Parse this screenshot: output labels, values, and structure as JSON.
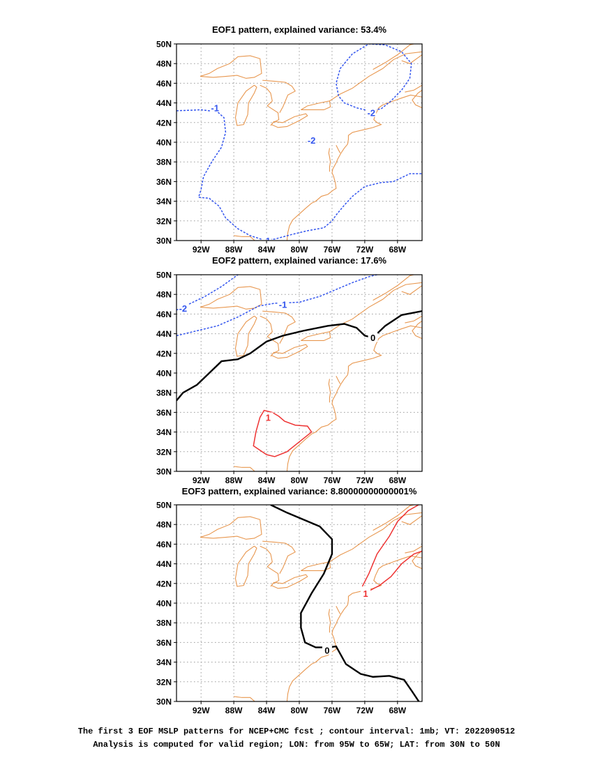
{
  "panels": [
    {
      "title": "EOF1 pattern, explained variance: 53.4%",
      "contours": [
        {
          "value": "-1",
          "color": "#3355ee",
          "style": "dashed",
          "points": [
            [
              -95,
              43.2
            ],
            [
              -92,
              43.3
            ],
            [
              -90,
              43.1
            ],
            [
              -89.2,
              42.5
            ],
            [
              -89.0,
              41.0
            ],
            [
              -89.5,
              39.5
            ],
            [
              -90.7,
              38.0
            ],
            [
              -91.7,
              36.5
            ],
            [
              -92.0,
              35.2
            ],
            [
              -92.3,
              34.4
            ],
            [
              -91.0,
              34.3
            ],
            [
              -89.8,
              33.5
            ],
            [
              -89.0,
              32.3
            ],
            [
              -87.5,
              31.2
            ],
            [
              -86.0,
              30.5
            ],
            [
              -84.5,
              30.1
            ],
            [
              -83.0,
              30.15
            ],
            [
              -81.0,
              30.6
            ],
            [
              -79.0,
              31.0
            ],
            [
              -77.0,
              31.3
            ],
            [
              -76.0,
              32.0
            ],
            [
              -75.5,
              32.6
            ],
            [
              -74.5,
              33.6
            ],
            [
              -73.5,
              34.5
            ],
            [
              -72.0,
              35.5
            ],
            [
              -70.0,
              35.9
            ],
            [
              -68.5,
              36.0
            ],
            [
              -67.5,
              36.4
            ],
            [
              -66.5,
              36.8
            ],
            [
              -65,
              36.8
            ]
          ],
          "labels": [
            [
              -90.3,
              43.5
            ],
            [
              -84.0,
              30.0
            ]
          ]
        },
        {
          "value": "-2",
          "color": "#3355ee",
          "style": "dashed",
          "points": [
            [
              -71.5,
              43.2
            ],
            [
              -73.0,
              43.5
            ],
            [
              -74.5,
              44.0
            ],
            [
              -75.2,
              44.7
            ],
            [
              -75.5,
              46.0
            ],
            [
              -75.0,
              47.5
            ],
            [
              -73.5,
              49.0
            ],
            [
              -71.5,
              50.0
            ],
            [
              -69.5,
              49.9
            ],
            [
              -67.5,
              49.2
            ],
            [
              -66.3,
              48.0
            ],
            [
              -66.5,
              46.5
            ],
            [
              -67.5,
              45.3
            ],
            [
              -68.8,
              44.2
            ],
            [
              -70.0,
              43.4
            ],
            [
              -71.5,
              43.2
            ]
          ],
          "labels": [
            [
              -71.2,
              43.0
            ],
            [
              -78.5,
              40.2
            ]
          ]
        }
      ]
    },
    {
      "title": "EOF2 pattern, explained variance: 17.6%",
      "contours": [
        {
          "value": "-2",
          "color": "#3355ee",
          "style": "dashed",
          "points": [
            [
              -95,
              46.4
            ],
            [
              -93.5,
              47.0
            ],
            [
              -91.5,
              47.8
            ],
            [
              -89.5,
              48.8
            ],
            [
              -87.5,
              50.0
            ]
          ],
          "labels": [
            [
              -94.2,
              46.6
            ]
          ]
        },
        {
          "value": "-1",
          "color": "#3355ee",
          "style": "dashed",
          "points": [
            [
              -95,
              43.8
            ],
            [
              -92.5,
              44.3
            ],
            [
              -90.0,
              44.8
            ],
            [
              -87.5,
              45.7
            ],
            [
              -85.0,
              46.8
            ],
            [
              -83.0,
              47.1
            ],
            [
              -80.0,
              47.2
            ],
            [
              -77.5,
              47.8
            ],
            [
              -75.5,
              48.5
            ],
            [
              -73.5,
              49.2
            ],
            [
              -71.5,
              49.8
            ],
            [
              -70.5,
              50.0
            ]
          ],
          "labels": [
            [
              -82.0,
              47.0
            ]
          ]
        },
        {
          "value": "0",
          "color": "#000000",
          "style": "solid",
          "points": [
            [
              -95,
              37.2
            ],
            [
              -94.2,
              38.0
            ],
            [
              -92.5,
              38.8
            ],
            [
              -91.0,
              40.0
            ],
            [
              -89.5,
              41.2
            ],
            [
              -87.5,
              41.4
            ],
            [
              -86.0,
              42.0
            ],
            [
              -84.0,
              43.2
            ],
            [
              -82.0,
              43.8
            ],
            [
              -79.5,
              44.3
            ],
            [
              -76.5,
              44.8
            ],
            [
              -74.5,
              45.0
            ],
            [
              -73.0,
              44.6
            ],
            [
              -72.0,
              43.8
            ],
            [
              -71.0,
              43.6
            ],
            [
              -69.5,
              44.8
            ],
            [
              -67.5,
              45.9
            ],
            [
              -65,
              46.3
            ]
          ],
          "labels": [
            [
              -71.0,
              43.6
            ]
          ]
        },
        {
          "value": "1",
          "color": "#ee3333",
          "style": "solid",
          "points": [
            [
              -84.8,
              35.5
            ],
            [
              -85.3,
              34.0
            ],
            [
              -85.6,
              32.6
            ],
            [
              -84.0,
              31.7
            ],
            [
              -83.0,
              31.5
            ],
            [
              -81.5,
              32.0
            ],
            [
              -80.0,
              33.0
            ],
            [
              -78.5,
              34.0
            ],
            [
              -79.0,
              34.6
            ],
            [
              -80.5,
              34.7
            ],
            [
              -81.8,
              35.1
            ],
            [
              -82.5,
              35.6
            ],
            [
              -83.3,
              36.0
            ],
            [
              -84.3,
              36.2
            ],
            [
              -84.8,
              35.5
            ]
          ],
          "labels": [
            [
              -83.8,
              35.5
            ]
          ]
        }
      ]
    },
    {
      "title": "EOF3 pattern, explained variance: 8.80000000000001%",
      "contours": [
        {
          "value": "0",
          "color": "#000000",
          "style": "solid",
          "points": [
            [
              -83.5,
              50.0
            ],
            [
              -81.5,
              49.2
            ],
            [
              -79.5,
              48.5
            ],
            [
              -77.5,
              47.8
            ],
            [
              -76.0,
              46.5
            ],
            [
              -76.0,
              45.0
            ],
            [
              -77.0,
              43.0
            ],
            [
              -78.5,
              41.0
            ],
            [
              -79.8,
              39.0
            ],
            [
              -79.8,
              37.5
            ],
            [
              -79.3,
              36.0
            ],
            [
              -78.0,
              35.5
            ],
            [
              -76.5,
              35.5
            ],
            [
              -75.5,
              35.6
            ],
            [
              -74.3,
              33.8
            ],
            [
              -72.5,
              32.8
            ],
            [
              -71.0,
              32.5
            ],
            [
              -69.0,
              32.6
            ],
            [
              -67.2,
              32.2
            ],
            [
              -66.2,
              31.0
            ],
            [
              -65.4,
              30.0
            ]
          ],
          "labels": [
            [
              -76.6,
              35.2
            ]
          ]
        },
        {
          "value": "1",
          "color": "#ee3333",
          "style": "solid",
          "points": [
            [
              -72.3,
              41.7
            ],
            [
              -71.5,
              43.0
            ],
            [
              -70.5,
              45.0
            ],
            [
              -69.0,
              46.8
            ],
            [
              -68.0,
              48.3
            ],
            [
              -66.7,
              49.4
            ],
            [
              -65,
              50.2
            ]
          ],
          "labels": []
        },
        {
          "value": "1",
          "color": "#ee3333",
          "style": "solid",
          "points": [
            [
              -71.8,
              41.1
            ],
            [
              -70.2,
              41.8
            ],
            [
              -68.8,
              42.7
            ],
            [
              -67.5,
              44.0
            ],
            [
              -66.0,
              45.0
            ],
            [
              -65,
              45.3
            ]
          ],
          "labels": [
            [
              -71.9,
              41.0
            ]
          ]
        }
      ]
    }
  ],
  "axes": {
    "x_tick_labels": [
      "92W",
      "88W",
      "84W",
      "80W",
      "76W",
      "72W",
      "68W"
    ],
    "y_tick_labels": [
      "30N",
      "32N",
      "34N",
      "36N",
      "38N",
      "40N",
      "42N",
      "44N",
      "46N",
      "48N",
      "50N"
    ]
  },
  "caption": {
    "line1": "The first 3 EOF MSLP patterns for NCEP+CMC fcst ; contour interval: 1mb; VT: 2022090512",
    "line2": "Analysis is computed for valid region; LON: from 95W to 65W; LAT: from 30N to 50N"
  },
  "colors": {
    "coastline": "#e8974f",
    "negative_contour": "#3355ee",
    "positive_contour": "#ee3333",
    "zero_contour": "#000000",
    "grid": "#999999"
  }
}
